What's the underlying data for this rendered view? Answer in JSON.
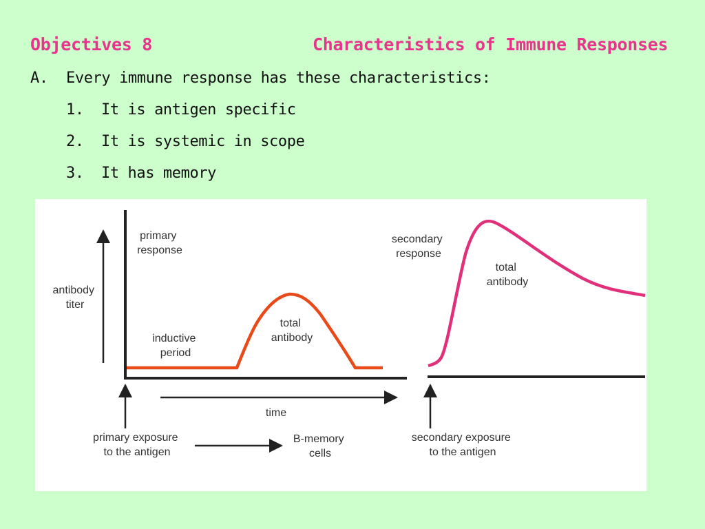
{
  "header": {
    "left_title": "Objectives 8",
    "right_title": "Characteristics of Immune Responses"
  },
  "intro": {
    "marker": "A.",
    "text": "Every immune response has these characteristics:"
  },
  "characteristics": [
    {
      "num": "1.",
      "text": "It is antigen specific"
    },
    {
      "num": "2.",
      "text": "It is systemic in scope"
    },
    {
      "num": "3.",
      "text": "It has memory"
    }
  ],
  "diagram": {
    "y_axis_label": [
      "antibody",
      "titer"
    ],
    "primary_response_label": [
      "primary",
      "response"
    ],
    "inductive_period_label": [
      "inductive",
      "period"
    ],
    "primary_total_antibody_label": [
      "total",
      "antibody"
    ],
    "secondary_response_label": [
      "secondary",
      "response"
    ],
    "secondary_total_antibody_label": [
      "total",
      "antibody"
    ],
    "time_label": "time",
    "primary_exposure_label": [
      "primary exposure",
      "to the antigen"
    ],
    "b_memory_label": [
      "B-memory",
      "cells"
    ],
    "secondary_exposure_label": [
      "secondary exposure",
      "to the antigen"
    ],
    "colors": {
      "primary_curve": "#e84a1a",
      "secondary_curve": "#e0307a",
      "axis": "#222222"
    }
  }
}
